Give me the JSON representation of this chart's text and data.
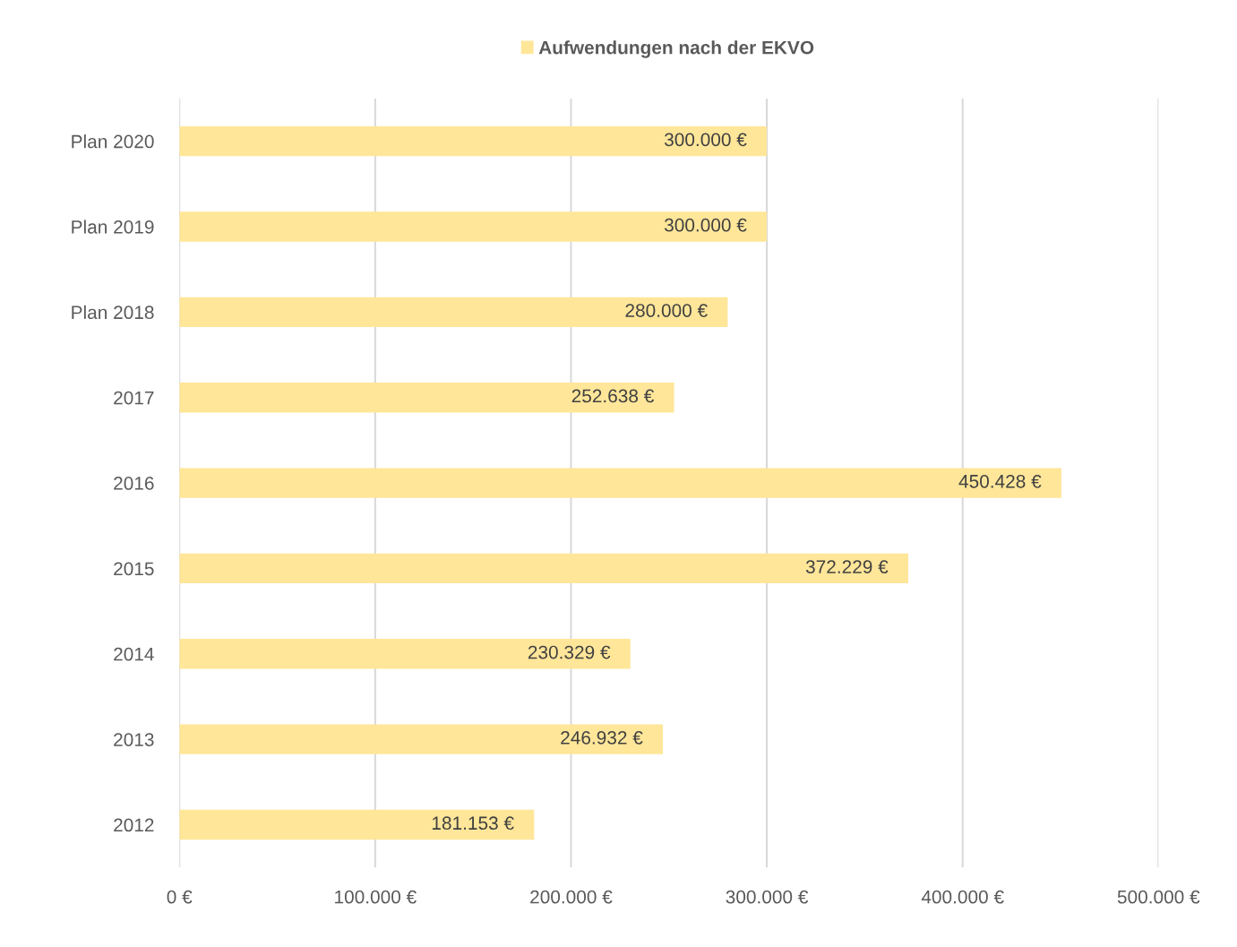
{
  "chart_data": {
    "type": "bar",
    "orientation": "horizontal",
    "categories": [
      "Plan 2020",
      "Plan 2019",
      "Plan 2018",
      "2017",
      "2016",
      "2015",
      "2014",
      "2013",
      "2012"
    ],
    "series": [
      {
        "name": "Aufwendungen nach der EKVO",
        "color": "#ffe699",
        "values": [
          300000,
          300000,
          280000,
          252638,
          450428,
          372229,
          230329,
          246932,
          181153
        ],
        "value_labels": [
          "300.000 €",
          "300.000 €",
          "280.000 €",
          "252.638 €",
          "450.428 €",
          "372.229 €",
          "230.329 €",
          "246.932 €",
          "181.153 €"
        ]
      }
    ],
    "xlim": [
      0,
      500000
    ],
    "xticks": [
      {
        "value": 0,
        "label": "0 €"
      },
      {
        "value": 100000,
        "label": "100.000 €"
      },
      {
        "value": 200000,
        "label": "200.000 €"
      },
      {
        "value": 300000,
        "label": "300.000 €"
      },
      {
        "value": 400000,
        "label": "400.000 €"
      },
      {
        "value": 500000,
        "label": "500.000 €"
      }
    ],
    "grid": "x",
    "legend": "top"
  }
}
